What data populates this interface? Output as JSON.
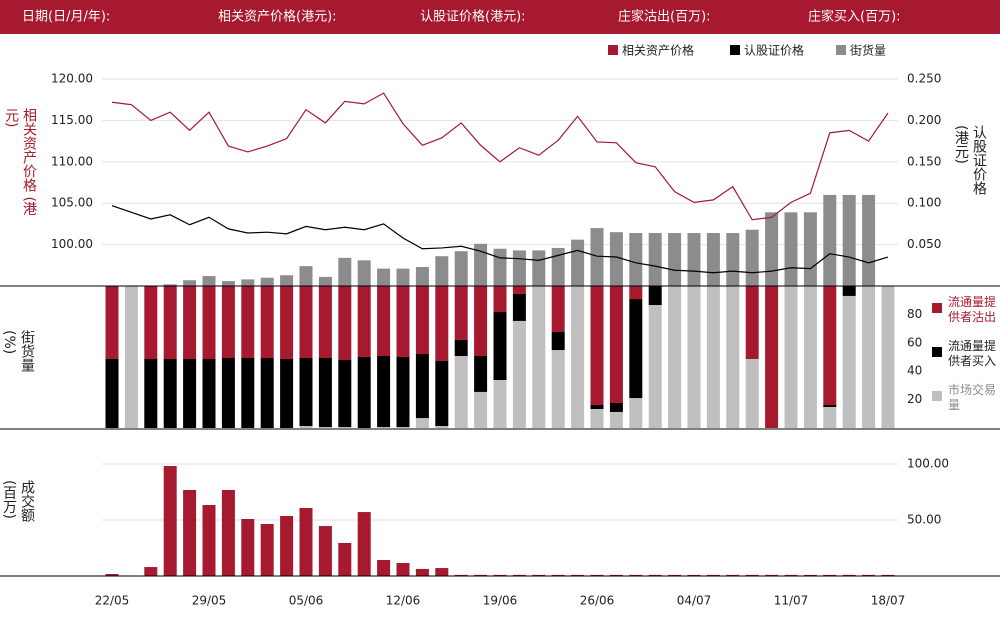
{
  "header": {
    "fields": [
      "日期(日/月/年):",
      "相关资产价格(港元):",
      "认股证价格(港元):",
      "庄家沽出(百万):",
      "庄家买入(百万):"
    ]
  },
  "chart_data": [
    {
      "type": "line",
      "ylabel": "相关资产价格 (港元)",
      "y2label": "认股证价格 (港元)",
      "ylim": [
        95,
        122.3
      ],
      "yticks": [
        {
          "value": 100,
          "label": "100.00"
        },
        {
          "value": 105,
          "label": "105.00"
        },
        {
          "value": 110,
          "label": "110.00"
        },
        {
          "value": 115,
          "label": "115.00"
        },
        {
          "value": 120,
          "label": "120.00"
        }
      ],
      "y2lim": [
        0,
        0.273
      ],
      "y2ticks": [
        {
          "value": 0.05,
          "label": "0.050"
        },
        {
          "value": 0.1,
          "label": "0.100"
        },
        {
          "value": 0.15,
          "label": "0.150"
        },
        {
          "value": 0.2,
          "label": "0.200"
        },
        {
          "value": 0.25,
          "label": "0.250"
        }
      ],
      "grid": true,
      "legend": "top-right",
      "series": [
        {
          "name": "相关资产价格",
          "color": "#a6192e",
          "axis": "y",
          "values": [
            117.2,
            116.9,
            115.0,
            116.0,
            113.8,
            116.0,
            111.9,
            111.2,
            111.9,
            112.8,
            116.3,
            114.7,
            117.3,
            117.0,
            118.3,
            114.6,
            112.0,
            112.9,
            114.7,
            112.0,
            110.0,
            111.7,
            110.8,
            112.6,
            115.5,
            112.4,
            112.3,
            109.9,
            109.4,
            106.4,
            105.1,
            105.4,
            107.0,
            103.0,
            103.3,
            105.1,
            106.2,
            113.5,
            113.8,
            112.5,
            115.9
          ]
        },
        {
          "name": "认股证价格",
          "color": "#000000",
          "axis": "y2",
          "values": [
            0.097,
            0.089,
            0.081,
            0.086,
            0.074,
            0.083,
            0.069,
            0.064,
            0.065,
            0.063,
            0.072,
            0.068,
            0.071,
            0.068,
            0.075,
            0.058,
            0.045,
            0.046,
            0.048,
            0.042,
            0.034,
            0.033,
            0.031,
            0.037,
            0.043,
            0.036,
            0.035,
            0.028,
            0.024,
            0.019,
            0.018,
            0.016,
            0.018,
            0.016,
            0.018,
            0.022,
            0.021,
            0.039,
            0.035,
            0.028,
            0.035
          ]
        },
        {
          "name": "街货量",
          "color": "#8c8c8c",
          "axis": "y2",
          "kind": "bar",
          "values": [
            0,
            0,
            0,
            0.002,
            0.007,
            0.012,
            0.006,
            0.008,
            0.01,
            0.013,
            0.024,
            0.011,
            0.034,
            0.031,
            0.021,
            0.021,
            0.023,
            0.036,
            0.042,
            0.051,
            0.045,
            0.043,
            0.043,
            0.046,
            0.056,
            0.07,
            0.065,
            0.064,
            0.064,
            0.064,
            0.064,
            0.064,
            0.064,
            0.068,
            0.089,
            0.089,
            0.089,
            0.11,
            0.11,
            0.11,
            0
          ]
        }
      ]
    },
    {
      "type": "stacked_bar",
      "ylabel": "街货量 (%)",
      "ylim": [
        0,
        100
      ],
      "yticks": [
        20,
        40,
        60,
        80
      ],
      "legend": "right",
      "series": [
        {
          "name": "流通量提供者沽出",
          "color": "#a6192e",
          "values": [
            51.4,
            0,
            51.4,
            51.4,
            51.4,
            51.4,
            50.7,
            50.7,
            50.7,
            51.4,
            50.7,
            50.7,
            52.1,
            50,
            49.3,
            50,
            47.9,
            52.8,
            38,
            49.3,
            18.3,
            5.6,
            0,
            32.4,
            0,
            83.8,
            82.4,
            9.2,
            0,
            0,
            0,
            0,
            0,
            51.4,
            100,
            0,
            0,
            83.8,
            0,
            0,
            0
          ]
        },
        {
          "name": "流通量提供者买入",
          "color": "#000000",
          "values": [
            48.6,
            0,
            48.6,
            48.6,
            48.6,
            48.6,
            49.3,
            49.3,
            49.3,
            48.6,
            47.9,
            48.6,
            47.2,
            50,
            50,
            49.3,
            45.1,
            45.8,
            11.3,
            25.3,
            47.9,
            19,
            0,
            12.7,
            0,
            2.8,
            6.3,
            69.7,
            13.4,
            0,
            0,
            0,
            0,
            0,
            0,
            0,
            0,
            1.4,
            7,
            0,
            0
          ]
        },
        {
          "name": "市场交易量",
          "color": "#bfbfbf",
          "values": [
            0,
            100,
            0,
            0,
            0,
            0,
            0,
            0,
            0,
            0,
            1.4,
            0.7,
            0.7,
            0,
            0.7,
            0.7,
            7,
            1.4,
            50.7,
            25.4,
            33.8,
            75.4,
            100,
            54.9,
            100,
            13.4,
            11.3,
            21.1,
            86.6,
            100,
            100,
            100,
            100,
            48.6,
            0,
            100,
            100,
            14.8,
            93,
            100,
            100
          ]
        }
      ]
    },
    {
      "type": "bar",
      "ylabel": "成交额 (百万)",
      "categories": [
        "22/05",
        null,
        null,
        null,
        null,
        "29/05",
        null,
        null,
        null,
        null,
        "05/06",
        null,
        null,
        null,
        null,
        "12/06",
        null,
        null,
        null,
        null,
        "19/06",
        null,
        null,
        null,
        null,
        "26/06",
        null,
        null,
        null,
        null,
        "04/07",
        null,
        null,
        null,
        null,
        "11/07",
        null,
        null,
        null,
        null,
        "18/07"
      ],
      "color": "#a6192e",
      "values": [
        1.8,
        0,
        8,
        98.2,
        76.8,
        63.4,
        76.8,
        50.9,
        46.4,
        53.6,
        60.7,
        44.6,
        29.5,
        57.1,
        14.3,
        11.6,
        6.3,
        7.1,
        1,
        1,
        1,
        1,
        1,
        1,
        1,
        1,
        1,
        1,
        1,
        1,
        1,
        1,
        1,
        1,
        1,
        1,
        1,
        1,
        1,
        1,
        1
      ],
      "ylim": [
        0,
        112.5
      ],
      "yticks": [
        {
          "value": 50,
          "label": "50.00"
        },
        {
          "value": 100,
          "label": "100.00"
        }
      ],
      "grid": true
    }
  ]
}
